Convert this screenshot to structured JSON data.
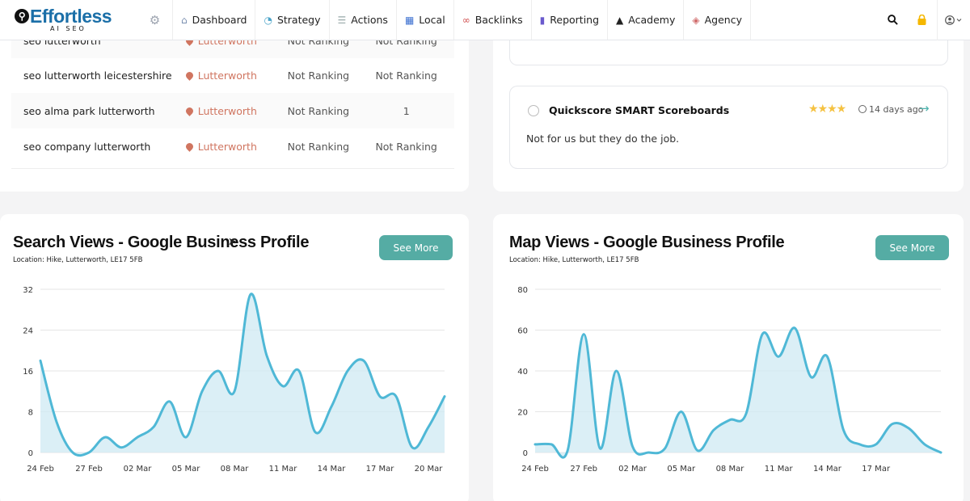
{
  "nav": {
    "logo_main": "Effortless",
    "logo_sub": "AI SEO",
    "items": [
      {
        "label": "Dashboard",
        "icon": "home-icon"
      },
      {
        "label": "Strategy",
        "icon": "strategy-icon"
      },
      {
        "label": "Actions",
        "icon": "list-icon"
      },
      {
        "label": "Local",
        "icon": "store-icon"
      },
      {
        "label": "Backlinks",
        "icon": "link-icon"
      },
      {
        "label": "Reporting",
        "icon": "bar-chart-icon"
      },
      {
        "label": "Academy",
        "icon": "graduation-cap-icon"
      },
      {
        "label": "Agency",
        "icon": "agency-icon"
      }
    ]
  },
  "rankings": {
    "rows": [
      {
        "keyword": "seo lutterworth",
        "location": "Lutterworth",
        "col_a": "Not Ranking",
        "col_b": "Not Ranking"
      },
      {
        "keyword": "seo lutterworth leicestershire",
        "location": "Lutterworth",
        "col_a": "Not Ranking",
        "col_b": "Not Ranking"
      },
      {
        "keyword": "seo alma park lutterworth",
        "location": "Lutterworth",
        "col_a": "Not Ranking",
        "col_b": "1"
      },
      {
        "keyword": "seo company lutterworth",
        "location": "Lutterworth",
        "col_a": "Not Ranking",
        "col_b": "Not Ranking"
      }
    ]
  },
  "review": {
    "name": "Quickscore SMART Scoreboards",
    "stars": "★★★★",
    "time": "14 days ago",
    "text": "Not for us but they do the job."
  },
  "charts": {
    "search": {
      "title": "Search Views - Google Business Profile",
      "location": "Location: Hike, Lutterworth, LE17 5FB",
      "button": "See More"
    },
    "map": {
      "title": "Map Views - Google Business Profile",
      "location": "Location: Hike, Lutterworth, LE17 5FB",
      "button": "See More"
    }
  },
  "colors": {
    "accent": "#55aca4",
    "line": "#4fb8d6",
    "fill": "#cfeaf3",
    "location": "#d07560"
  },
  "chart_data": [
    {
      "type": "area",
      "title": "Search Views - Google Business Profile",
      "x_ticks": [
        "24 Feb",
        "27 Feb",
        "02 Mar",
        "05 Mar",
        "08 Mar",
        "11 Mar",
        "14 Mar",
        "17 Mar",
        "20 Mar"
      ],
      "y_ticks": [
        0,
        8,
        16,
        24,
        32
      ],
      "ylim": [
        0,
        32
      ],
      "grid": true,
      "x": [
        "24 Feb",
        "25 Feb",
        "26 Feb",
        "27 Feb",
        "28 Feb",
        "01 Mar",
        "02 Mar",
        "03 Mar",
        "04 Mar",
        "05 Mar",
        "06 Mar",
        "07 Mar",
        "08 Mar",
        "09 Mar",
        "10 Mar",
        "11 Mar",
        "12 Mar",
        "13 Mar",
        "14 Mar",
        "15 Mar",
        "16 Mar",
        "17 Mar",
        "18 Mar",
        "19 Mar",
        "20 Mar",
        "21 Mar"
      ],
      "values": [
        18,
        6,
        0,
        0,
        3,
        1,
        3,
        5,
        10,
        3,
        12,
        16,
        12,
        31,
        19,
        13,
        16,
        4,
        9,
        16,
        18,
        11,
        11,
        1,
        5,
        11
      ]
    },
    {
      "type": "area",
      "title": "Map Views - Google Business Profile",
      "x_ticks": [
        "24 Feb",
        "27 Feb",
        "02 Mar",
        "05 Mar",
        "08 Mar",
        "11 Mar",
        "14 Mar",
        "17 Mar"
      ],
      "y_ticks": [
        0,
        20,
        40,
        60,
        80
      ],
      "ylim": [
        0,
        80
      ],
      "grid": true,
      "x": [
        "24 Feb",
        "25 Feb",
        "26 Feb",
        "27 Feb",
        "28 Feb",
        "01 Mar",
        "02 Mar",
        "03 Mar",
        "04 Mar",
        "05 Mar",
        "06 Mar",
        "07 Mar",
        "08 Mar",
        "09 Mar",
        "10 Mar",
        "11 Mar",
        "12 Mar",
        "13 Mar",
        "14 Mar",
        "15 Mar",
        "16 Mar",
        "17 Mar",
        "18 Mar",
        "19 Mar",
        "20 Mar",
        "21 Mar"
      ],
      "values": [
        4,
        4,
        1,
        58,
        2,
        40,
        3,
        0,
        2,
        20,
        1,
        11,
        16,
        19,
        58,
        47,
        61,
        37,
        47,
        11,
        4,
        4,
        14,
        12,
        4,
        0
      ]
    }
  ]
}
